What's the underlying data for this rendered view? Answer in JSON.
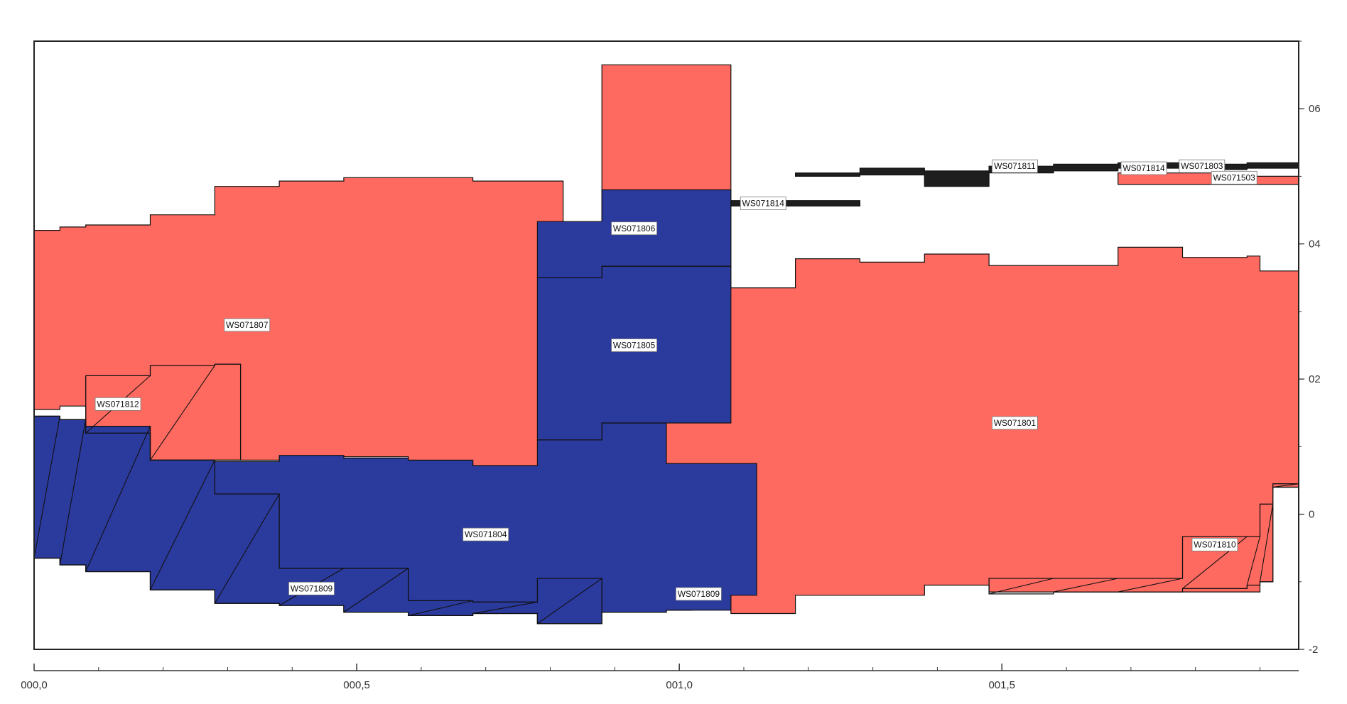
{
  "colors": {
    "red": "#ff6a60",
    "blue": "#2b3a9d",
    "black": "#1e1e1e",
    "frame": "#222222"
  },
  "chart_data": {
    "type": "area",
    "title": "",
    "xlabel": "",
    "ylabel": "",
    "xlim": [
      0.0,
      1.96
    ],
    "ylim": [
      -2.0,
      7.0
    ],
    "x_ticks": [
      {
        "value": 0.0,
        "label": "000,0"
      },
      {
        "value": 0.5,
        "label": "000,5"
      },
      {
        "value": 1.0,
        "label": "001,0"
      },
      {
        "value": 1.5,
        "label": "001,5"
      }
    ],
    "y_ticks": [
      {
        "value": 6,
        "label": "06"
      },
      {
        "value": 4,
        "label": "04"
      },
      {
        "value": 2,
        "label": "02"
      },
      {
        "value": 0,
        "label": "0"
      },
      {
        "value": -2,
        "label": "-2"
      }
    ],
    "series": [
      {
        "name": "WS071807",
        "color": "red",
        "label_at": [
          0.33,
          2.8
        ],
        "top": [
          [
            0.0,
            4.2
          ],
          [
            0.04,
            4.25
          ],
          [
            0.08,
            4.28
          ],
          [
            0.18,
            4.43
          ],
          [
            0.28,
            4.85
          ],
          [
            0.38,
            4.93
          ],
          [
            0.48,
            4.98
          ],
          [
            0.58,
            4.98
          ],
          [
            0.68,
            4.93
          ],
          [
            0.78,
            4.93
          ]
        ],
        "bottom": [
          [
            0.0,
            1.55
          ],
          [
            0.04,
            1.6
          ],
          [
            0.08,
            1.2
          ],
          [
            0.18,
            0.8
          ],
          [
            0.28,
            0.8
          ],
          [
            0.38,
            0.85
          ],
          [
            0.48,
            0.85
          ],
          [
            0.58,
            0.78
          ],
          [
            0.68,
            0.7
          ],
          [
            0.78,
            0.7
          ]
        ]
      },
      {
        "name": "WS071801",
        "color": "red",
        "label_at": [
          1.52,
          1.35
        ],
        "top": [
          [
            0.88,
            6.65
          ],
          [
            1.08,
            3.35
          ],
          [
            1.18,
            3.78
          ],
          [
            1.28,
            3.73
          ],
          [
            1.38,
            3.85
          ],
          [
            1.48,
            3.68
          ],
          [
            1.58,
            3.68
          ],
          [
            1.68,
            3.95
          ],
          [
            1.78,
            3.8
          ],
          [
            1.88,
            3.82
          ],
          [
            1.9,
            3.6
          ],
          [
            1.96,
            3.65
          ]
        ],
        "bottom": [
          [
            0.88,
            0.75
          ],
          [
            0.98,
            0.75
          ],
          [
            1.08,
            -1.47
          ],
          [
            1.18,
            -1.2
          ],
          [
            1.38,
            -1.05
          ],
          [
            1.48,
            -1.15
          ],
          [
            1.58,
            -1.15
          ],
          [
            1.9,
            -1.0
          ],
          [
            1.92,
            0.4
          ],
          [
            1.96,
            0.4
          ]
        ]
      },
      {
        "name": "WS071803",
        "color": "red",
        "label_at": [
          1.81,
          5.15
        ],
        "top": [
          [
            1.68,
            5.05
          ],
          [
            1.78,
            5.05
          ],
          [
            1.88,
            5.0
          ],
          [
            1.9,
            5.0
          ]
        ],
        "bottom": [
          [
            1.68,
            4.88
          ],
          [
            1.78,
            4.88
          ],
          [
            1.88,
            4.88
          ],
          [
            1.9,
            4.88
          ]
        ]
      },
      {
        "name": "WS071804",
        "color": "blue",
        "label_at": [
          0.7,
          -0.3
        ],
        "top": [
          [
            0.0,
            1.45
          ],
          [
            0.04,
            1.4
          ],
          [
            0.08,
            1.3
          ],
          [
            0.18,
            0.8
          ],
          [
            0.28,
            0.78
          ],
          [
            0.38,
            0.87
          ],
          [
            0.48,
            0.83
          ],
          [
            0.58,
            0.8
          ],
          [
            0.68,
            0.72
          ],
          [
            0.78,
            1.1
          ],
          [
            0.88,
            1.35
          ],
          [
            0.98,
            0.75
          ],
          [
            1.08,
            0.75
          ]
        ],
        "bottom": [
          [
            0.0,
            -0.65
          ],
          [
            0.04,
            -0.75
          ],
          [
            0.08,
            -0.85
          ],
          [
            0.18,
            -1.12
          ],
          [
            0.28,
            -1.32
          ],
          [
            0.38,
            -1.35
          ],
          [
            0.48,
            -1.45
          ],
          [
            0.58,
            -1.5
          ],
          [
            0.68,
            -1.47
          ],
          [
            0.78,
            -1.62
          ],
          [
            0.88,
            -1.45
          ],
          [
            0.98,
            -1.42
          ],
          [
            1.08,
            -1.2
          ]
        ]
      },
      {
        "name": "WS071805",
        "color": "blue",
        "label_at": [
          0.93,
          2.5
        ],
        "top": [
          [
            0.78,
            3.5
          ],
          [
            0.88,
            3.67
          ],
          [
            0.98,
            3.67
          ]
        ],
        "bottom": [
          [
            0.78,
            1.1
          ],
          [
            0.88,
            1.35
          ],
          [
            0.98,
            1.35
          ]
        ]
      },
      {
        "name": "WS071806",
        "color": "blue",
        "label_at": [
          0.93,
          4.23
        ],
        "top": [
          [
            0.78,
            4.33
          ],
          [
            0.88,
            4.8
          ],
          [
            0.98,
            4.8
          ]
        ],
        "bottom": [
          [
            0.78,
            3.5
          ],
          [
            0.88,
            3.67
          ],
          [
            0.98,
            3.67
          ]
        ]
      },
      {
        "name": "WS071811",
        "color": "black",
        "label_at": [
          1.52,
          5.15
        ],
        "top": [
          [
            1.18,
            5.05
          ],
          [
            1.28,
            5.12
          ],
          [
            1.38,
            5.08
          ],
          [
            1.48,
            5.15
          ],
          [
            1.58,
            5.18
          ],
          [
            1.68,
            5.2
          ],
          [
            1.78,
            5.18
          ],
          [
            1.88,
            5.2
          ],
          [
            1.96,
            5.18
          ]
        ],
        "bottom": [
          [
            1.18,
            5.0
          ],
          [
            1.28,
            5.02
          ],
          [
            1.38,
            4.85
          ],
          [
            1.48,
            5.05
          ],
          [
            1.58,
            5.08
          ],
          [
            1.68,
            5.12
          ],
          [
            1.78,
            5.1
          ],
          [
            1.88,
            5.12
          ],
          [
            1.96,
            5.05
          ]
        ]
      },
      {
        "name": "WS071814",
        "color": "black",
        "label_at": [
          1.13,
          4.6
        ],
        "top": [
          [
            1.08,
            4.64
          ],
          [
            1.18,
            4.64
          ]
        ],
        "bottom": [
          [
            1.08,
            4.56
          ],
          [
            1.18,
            4.56
          ]
        ]
      }
    ],
    "outline_areas": [
      {
        "name": "WS071812",
        "label_at": [
          0.13,
          1.63
        ],
        "top": [
          [
            0.0,
            1.45
          ],
          [
            0.04,
            1.4
          ],
          [
            0.08,
            2.05
          ],
          [
            0.18,
            2.2
          ],
          [
            0.28,
            2.22
          ]
        ],
        "bottom": [
          [
            0.0,
            1.45
          ],
          [
            0.04,
            1.4
          ],
          [
            0.08,
            1.2
          ],
          [
            0.18,
            0.8
          ],
          [
            0.28,
            0.8
          ]
        ]
      },
      {
        "name": "WS071809",
        "label_at": [
          0.43,
          -1.1
        ],
        "top": [
          [
            0.0,
            1.45
          ],
          [
            0.04,
            1.4
          ],
          [
            0.08,
            1.3
          ],
          [
            0.18,
            0.8
          ],
          [
            0.28,
            0.3
          ],
          [
            0.38,
            -0.8
          ],
          [
            0.48,
            -0.8
          ],
          [
            0.58,
            -1.28
          ],
          [
            0.68,
            -1.3
          ],
          [
            0.78,
            -0.95
          ],
          [
            0.88,
            -1.45
          ],
          [
            0.98,
            -1.42
          ]
        ],
        "bottom": [
          [
            0.0,
            -0.65
          ],
          [
            0.04,
            -0.75
          ],
          [
            0.08,
            -0.85
          ],
          [
            0.18,
            -1.12
          ],
          [
            0.28,
            -1.32
          ],
          [
            0.38,
            -1.35
          ],
          [
            0.48,
            -1.45
          ],
          [
            0.58,
            -1.5
          ],
          [
            0.68,
            -1.47
          ],
          [
            0.78,
            -1.62
          ],
          [
            0.88,
            -1.45
          ],
          [
            0.98,
            -1.42
          ]
        ]
      },
      {
        "name": "WS071810",
        "label_at": [
          1.83,
          -0.45
        ],
        "top": [
          [
            1.48,
            -0.95
          ],
          [
            1.58,
            -0.95
          ],
          [
            1.68,
            -0.95
          ],
          [
            1.78,
            -0.33
          ],
          [
            1.88,
            -0.33
          ],
          [
            1.9,
            0.15
          ],
          [
            1.92,
            0.45
          ],
          [
            1.96,
            1.3
          ]
        ],
        "bottom": [
          [
            1.48,
            -1.18
          ],
          [
            1.58,
            -1.15
          ],
          [
            1.68,
            -1.15
          ],
          [
            1.78,
            -1.1
          ],
          [
            1.88,
            -1.05
          ],
          [
            1.9,
            -1.0
          ],
          [
            1.92,
            0.4
          ],
          [
            1.96,
            0.4
          ]
        ]
      }
    ],
    "extra_labels": [
      {
        "text": "WS071814",
        "at": [
          1.72,
          5.12
        ]
      },
      {
        "text": "WS071503",
        "at": [
          1.86,
          4.98
        ]
      },
      {
        "text": "WS071809",
        "at": [
          1.03,
          -1.18
        ]
      }
    ]
  }
}
